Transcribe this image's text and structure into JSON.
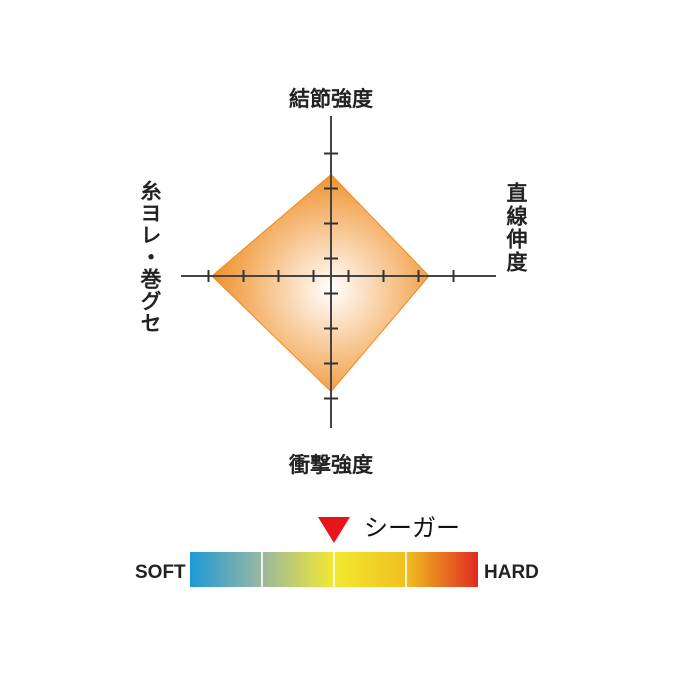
{
  "chart_data": {
    "type": "radar",
    "axes": [
      {
        "label": "結節強度",
        "direction": "top",
        "value": 2.9
      },
      {
        "label": "直線伸度",
        "direction": "right",
        "value": 2.8
      },
      {
        "label": "衝撃強度",
        "direction": "bottom",
        "value": 3.3
      },
      {
        "label": "糸ヨレ・巻グセ",
        "direction": "left",
        "value": 3.4
      }
    ],
    "tick_values": [
      0.5,
      1.5,
      2.5,
      3.5
    ],
    "range": [
      0,
      4
    ],
    "fill_color": "#ef8a1e",
    "fill_center_color": "#ffffff"
  },
  "scale": {
    "soft_label": "SOFT",
    "hard_label": "HARD",
    "product_label": "シーガー",
    "marker_position": 0.5,
    "marker_color": "#e8141c",
    "segments": 4,
    "gradient_colors": [
      "#1c9ad8",
      "#9ab8a0",
      "#f2e830",
      "#f0c020",
      "#e02a20"
    ]
  }
}
